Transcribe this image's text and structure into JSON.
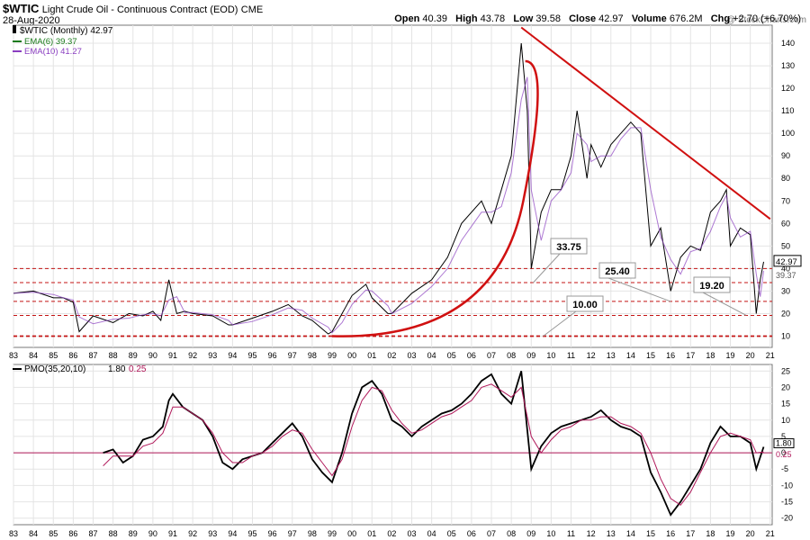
{
  "header": {
    "symbol": "$WTIC",
    "name": "Light Crude Oil - Continuous Contract (EOD)",
    "exchange": "CME",
    "date": "28-Aug-2020",
    "watermark": "@ StockCharts.com",
    "quote": [
      {
        "label": "Open",
        "value": "40.39"
      },
      {
        "label": "High",
        "value": "43.78"
      },
      {
        "label": "Low",
        "value": "39.58"
      },
      {
        "label": "Close",
        "value": "42.97"
      },
      {
        "label": "Volume",
        "value": "676.2M"
      },
      {
        "label": "Chg",
        "value": "+2.70 (+6.70%)"
      }
    ]
  },
  "legend": {
    "price": "$WTIC (Monthly) 42.97",
    "ema6": "EMA(6) 39.37",
    "ema10": "EMA(10) 41.27",
    "pmo_label": "PMO(35,20,10)",
    "pmo_value": "1.80",
    "pmo_signal": "0.25"
  },
  "chart_data": [
    {
      "type": "line",
      "subtype": "ohlc-monthly",
      "title": "$WTIC (Monthly)",
      "x_ticks": [
        "83",
        "84",
        "85",
        "86",
        "87",
        "88",
        "89",
        "90",
        "91",
        "92",
        "93",
        "94",
        "95",
        "96",
        "97",
        "98",
        "99",
        "00",
        "01",
        "02",
        "03",
        "04",
        "05",
        "06",
        "07",
        "08",
        "09",
        "10",
        "11",
        "12",
        "13",
        "14",
        "15",
        "16",
        "17",
        "18",
        "19",
        "20",
        "21"
      ],
      "y_ticks": [
        10,
        20,
        30,
        40,
        50,
        60,
        70,
        80,
        90,
        100,
        110,
        120,
        130,
        140
      ],
      "ylim": [
        5,
        148
      ],
      "series": [
        {
          "name": "$WTIC",
          "x": [
            1983.0,
            1984.0,
            1985.0,
            1985.5,
            1986.0,
            1986.3,
            1987.0,
            1988.0,
            1988.8,
            1989.5,
            1990.0,
            1990.4,
            1990.8,
            1991.2,
            1991.6,
            1992.0,
            1993.0,
            1993.8,
            1994.0,
            1995.0,
            1996.0,
            1996.8,
            1997.5,
            1998.0,
            1998.8,
            1999.0,
            1999.5,
            2000.0,
            2000.7,
            2001.0,
            2001.8,
            2002.0,
            2003.0,
            2004.0,
            2004.8,
            2005.5,
            2006.5,
            2007.0,
            2007.5,
            2008.0,
            2008.5,
            2008.8,
            2009.0,
            2009.5,
            2010.0,
            2010.5,
            2011.0,
            2011.3,
            2011.8,
            2012.0,
            2012.5,
            2013.0,
            2013.5,
            2014.0,
            2014.5,
            2015.0,
            2015.5,
            2016.0,
            2016.5,
            2017.0,
            2017.5,
            2018.0,
            2018.5,
            2018.8,
            2019.0,
            2019.5,
            2020.0,
            2020.3,
            2020.5,
            2020.67
          ],
          "values": [
            29,
            30,
            27,
            27,
            25,
            12,
            19,
            16,
            20,
            19,
            21,
            17,
            35,
            20,
            21,
            20,
            19,
            15,
            15,
            18,
            21,
            24,
            19,
            17,
            11,
            12,
            20,
            28,
            33,
            27,
            20,
            20,
            29,
            35,
            45,
            60,
            70,
            60,
            75,
            90,
            140,
            110,
            40,
            65,
            75,
            75,
            90,
            110,
            80,
            95,
            85,
            95,
            100,
            105,
            100,
            50,
            58,
            30,
            45,
            50,
            48,
            65,
            70,
            75,
            50,
            58,
            55,
            20,
            35,
            42.97
          ]
        }
      ],
      "overlays": {
        "ema6": 39.37,
        "ema10": 41.27
      },
      "annotations": [
        {
          "label": "33.75",
          "value": 33.75
        },
        {
          "label": "25.40",
          "value": 25.4
        },
        {
          "label": "19.20",
          "value": 19.2
        },
        {
          "label": "10.00",
          "value": 10.0
        }
      ],
      "support_levels": [
        10,
        19.2,
        25.4,
        33.75,
        40
      ],
      "trendline": {
        "from": [
          2008.5,
          147
        ],
        "to": [
          2021.0,
          62
        ]
      },
      "last_price": "42.97",
      "ema_price": "39.37",
      "grid": true
    },
    {
      "type": "line",
      "title": "PMO(35,20,10)",
      "y_ticks": [
        -20,
        -15,
        -10,
        -5,
        0,
        5,
        10,
        15,
        20,
        25
      ],
      "ylim": [
        -22,
        27
      ],
      "series": [
        {
          "name": "PMO",
          "x": [
            1987.5,
            1988.0,
            1988.5,
            1989.0,
            1989.5,
            1990.0,
            1990.5,
            1990.8,
            1991.0,
            1991.5,
            1992.0,
            1992.5,
            1993.0,
            1993.5,
            1994.0,
            1994.5,
            1995.0,
            1995.5,
            1996.0,
            1996.5,
            1997.0,
            1997.5,
            1998.0,
            1998.5,
            1999.0,
            1999.5,
            2000.0,
            2000.5,
            2001.0,
            2001.5,
            2002.0,
            2002.5,
            2003.0,
            2003.5,
            2004.0,
            2004.5,
            2005.0,
            2005.5,
            2006.0,
            2006.5,
            2007.0,
            2007.5,
            2008.0,
            2008.5,
            2009.0,
            2009.5,
            2010.0,
            2010.5,
            2011.0,
            2011.5,
            2012.0,
            2012.5,
            2013.0,
            2013.5,
            2014.0,
            2014.5,
            2015.0,
            2015.5,
            2016.0,
            2016.5,
            2017.0,
            2017.5,
            2018.0,
            2018.5,
            2019.0,
            2019.5,
            2020.0,
            2020.3,
            2020.67
          ],
          "values": [
            0,
            1,
            -3,
            -1,
            4,
            5,
            8,
            16,
            18,
            14,
            12,
            10,
            5,
            -3,
            -5,
            -2,
            -1,
            0,
            3,
            6,
            9,
            5,
            -2,
            -6,
            -9,
            0,
            12,
            20,
            22,
            18,
            10,
            8,
            5,
            8,
            10,
            12,
            13,
            15,
            18,
            22,
            24,
            18,
            15,
            25,
            -5,
            2,
            6,
            8,
            9,
            10,
            11,
            13,
            10,
            8,
            7,
            5,
            -6,
            -12,
            -19,
            -15,
            -10,
            -5,
            3,
            8,
            5,
            5,
            3,
            -5,
            1.8
          ]
        },
        {
          "name": "Signal",
          "x": [
            1987.5,
            1988.0,
            1988.5,
            1989.0,
            1989.5,
            1990.0,
            1990.5,
            1991.0,
            1991.5,
            1992.0,
            1992.5,
            1993.0,
            1993.5,
            1994.0,
            1994.5,
            1995.0,
            1995.5,
            1996.0,
            1996.5,
            1997.0,
            1997.5,
            1998.0,
            1998.5,
            1999.0,
            1999.5,
            2000.0,
            2000.5,
            2001.0,
            2001.5,
            2002.0,
            2002.5,
            2003.0,
            2003.5,
            2004.0,
            2004.5,
            2005.0,
            2005.5,
            2006.0,
            2006.5,
            2007.0,
            2007.5,
            2008.0,
            2008.5,
            2009.0,
            2009.5,
            2010.0,
            2010.5,
            2011.0,
            2011.5,
            2012.0,
            2012.5,
            2013.0,
            2013.5,
            2014.0,
            2014.5,
            2015.0,
            2015.5,
            2016.0,
            2016.5,
            2017.0,
            2017.5,
            2018.0,
            2018.5,
            2019.0,
            2019.5,
            2020.0,
            2020.3,
            2020.67
          ],
          "values": [
            -4,
            -1,
            -1,
            -1,
            2,
            3,
            6,
            14,
            14,
            12,
            10,
            6,
            0,
            -3,
            -3,
            -1,
            0,
            2,
            5,
            7,
            6,
            1,
            -3,
            -7,
            -2,
            8,
            16,
            20,
            19,
            13,
            9,
            6,
            7,
            9,
            11,
            12,
            14,
            16,
            20,
            21,
            19,
            17,
            20,
            5,
            0,
            4,
            7,
            8,
            10,
            10,
            11,
            11,
            9,
            8,
            6,
            0,
            -8,
            -14,
            -16,
            -12,
            -6,
            0,
            5,
            6,
            5,
            4,
            0,
            0.25
          ]
        }
      ],
      "zero_line": 0,
      "last_values": [
        "1.80",
        "0.25"
      ],
      "grid": true
    }
  ]
}
